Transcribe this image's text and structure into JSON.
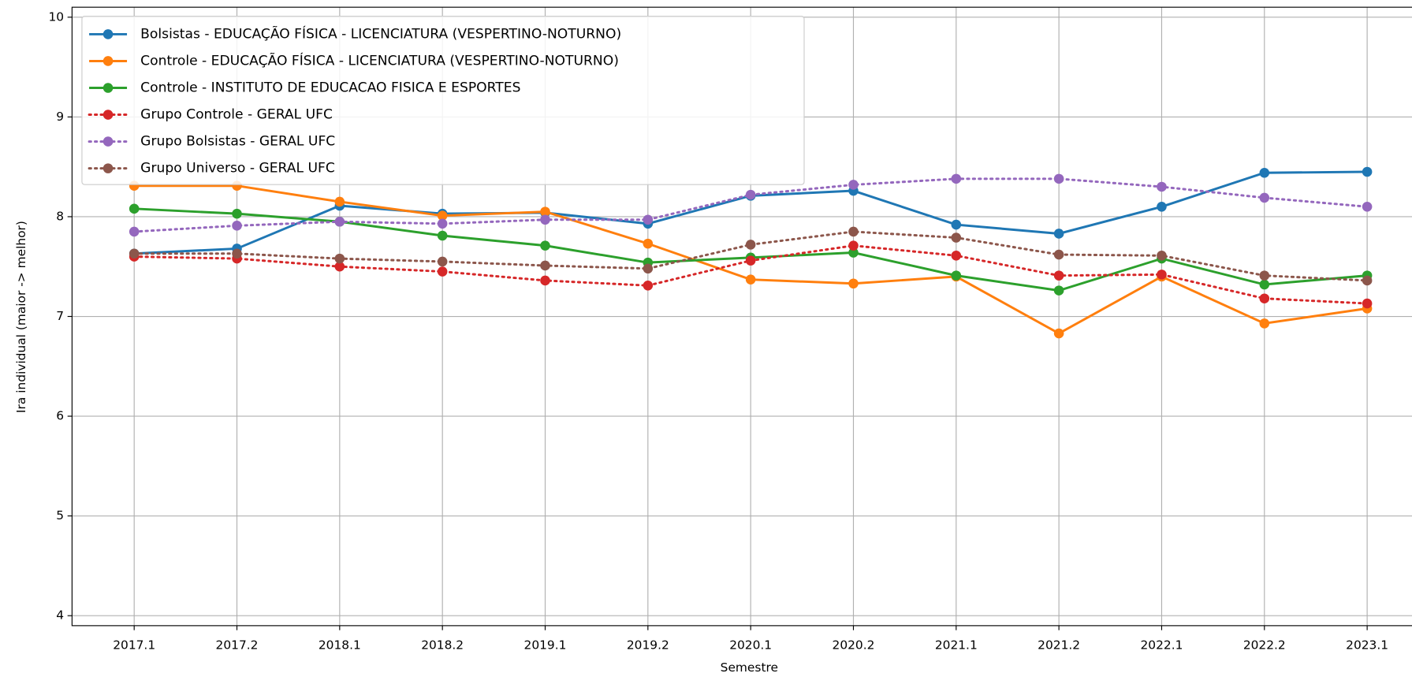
{
  "chart_data": {
    "type": "line",
    "x_label": "Semestre",
    "y_label": "Ira individual (maior -> melhor)",
    "categories": [
      "2017.1",
      "2017.2",
      "2018.1",
      "2018.2",
      "2019.1",
      "2019.2",
      "2020.1",
      "2020.2",
      "2021.1",
      "2021.2",
      "2022.1",
      "2022.2",
      "2023.1"
    ],
    "ylim": [
      3.9,
      10.1
    ],
    "yticks": [
      4,
      5,
      6,
      7,
      8,
      9,
      10
    ],
    "grid": true,
    "legend": "upper left",
    "series": [
      {
        "name": "Bolsistas - EDUCAÇÃO FÍSICA - LICENCIATURA (VESPERTINO-NOTURNO)",
        "color": "#1f77b4",
        "linestyle": "solid",
        "values": [
          7.63,
          7.68,
          8.11,
          8.03,
          8.04,
          7.93,
          8.21,
          8.26,
          7.92,
          7.83,
          8.1,
          8.44,
          8.45
        ]
      },
      {
        "name": "Controle - EDUCAÇÃO FÍSICA - LICENCIATURA (VESPERTINO-NOTURNO)",
        "color": "#ff7f0e",
        "linestyle": "solid",
        "values": [
          8.31,
          8.31,
          8.15,
          8.01,
          8.05,
          7.73,
          7.37,
          7.33,
          7.4,
          6.83,
          7.4,
          6.93,
          7.08
        ]
      },
      {
        "name": "Controle - INSTITUTO DE EDUCACAO FISICA E ESPORTES",
        "color": "#2ca02c",
        "linestyle": "solid",
        "values": [
          8.08,
          8.03,
          7.95,
          7.81,
          7.71,
          7.54,
          7.59,
          7.64,
          7.41,
          7.26,
          7.58,
          7.32,
          7.41
        ]
      },
      {
        "name": "Grupo Controle - GERAL UFC",
        "color": "#d62728",
        "linestyle": "dotted",
        "values": [
          7.6,
          7.58,
          7.5,
          7.45,
          7.36,
          7.31,
          7.56,
          7.71,
          7.61,
          7.41,
          7.42,
          7.18,
          7.13
        ]
      },
      {
        "name": "Grupo Bolsistas - GERAL UFC",
        "color": "#9467bd",
        "linestyle": "dotted",
        "values": [
          7.85,
          7.91,
          7.95,
          7.93,
          7.97,
          7.97,
          8.22,
          8.32,
          8.38,
          8.38,
          8.3,
          8.19,
          8.1
        ]
      },
      {
        "name": "Grupo Universo - GERAL UFC",
        "color": "#8c564b",
        "linestyle": "dotted",
        "values": [
          7.63,
          7.63,
          7.58,
          7.55,
          7.51,
          7.48,
          7.72,
          7.85,
          7.79,
          7.62,
          7.61,
          7.41,
          7.36
        ]
      }
    ]
  }
}
